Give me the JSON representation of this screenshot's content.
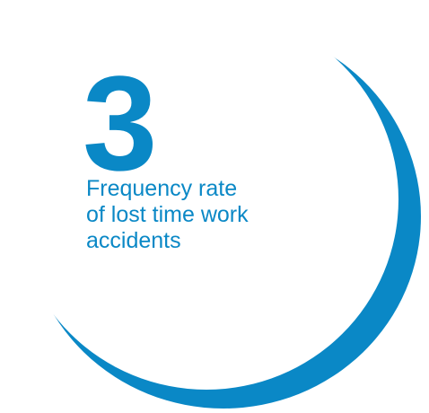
{
  "stat": {
    "value": "3",
    "label_lines": [
      "Frequency rate",
      "of lost time work",
      "accidents"
    ]
  },
  "colors": {
    "accent": "#0a88c6",
    "background": "#ffffff"
  },
  "icons": {
    "decoration": "crescent-ring-circle"
  }
}
